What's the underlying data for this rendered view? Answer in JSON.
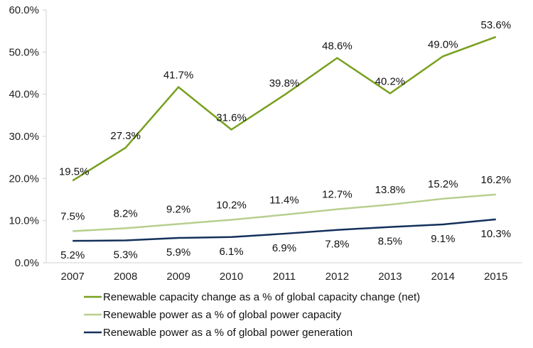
{
  "chart_data": {
    "type": "line",
    "categories": [
      "2007",
      "2008",
      "2009",
      "2010",
      "2011",
      "2012",
      "2013",
      "2014",
      "2015"
    ],
    "ylim": [
      0,
      60
    ],
    "yticks": [
      "0.0%",
      "10.0%",
      "20.0%",
      "30.0%",
      "40.0%",
      "50.0%",
      "60.0%"
    ],
    "grid": false,
    "legend_position": "bottom",
    "series": [
      {
        "name": "Renewable capacity change as a % of global capacity change (net)",
        "color": "#77a01f",
        "values": [
          19.5,
          27.3,
          41.7,
          31.6,
          39.8,
          48.6,
          40.2,
          49.0,
          53.6
        ],
        "labels": [
          "19.5%",
          "27.3%",
          "41.7%",
          "31.6%",
          "39.8%",
          "48.6%",
          "40.2%",
          "49.0%",
          "53.6%"
        ]
      },
      {
        "name": "Renewable power as a % of global power capacity",
        "color": "#b7cf8e",
        "values": [
          7.5,
          8.2,
          9.2,
          10.2,
          11.4,
          12.7,
          13.8,
          15.2,
          16.2
        ],
        "labels": [
          "7.5%",
          "8.2%",
          "9.2%",
          "10.2%",
          "11.4%",
          "12.7%",
          "13.8%",
          "15.2%",
          "16.2%"
        ]
      },
      {
        "name": "Renewable power as a % of global power generation",
        "color": "#14305a",
        "values": [
          5.2,
          5.3,
          5.9,
          6.1,
          6.9,
          7.8,
          8.5,
          9.1,
          10.3
        ],
        "labels": [
          "5.2%",
          "5.3%",
          "5.9%",
          "6.1%",
          "6.9%",
          "7.8%",
          "8.5%",
          "9.1%",
          "10.3%"
        ]
      }
    ]
  }
}
